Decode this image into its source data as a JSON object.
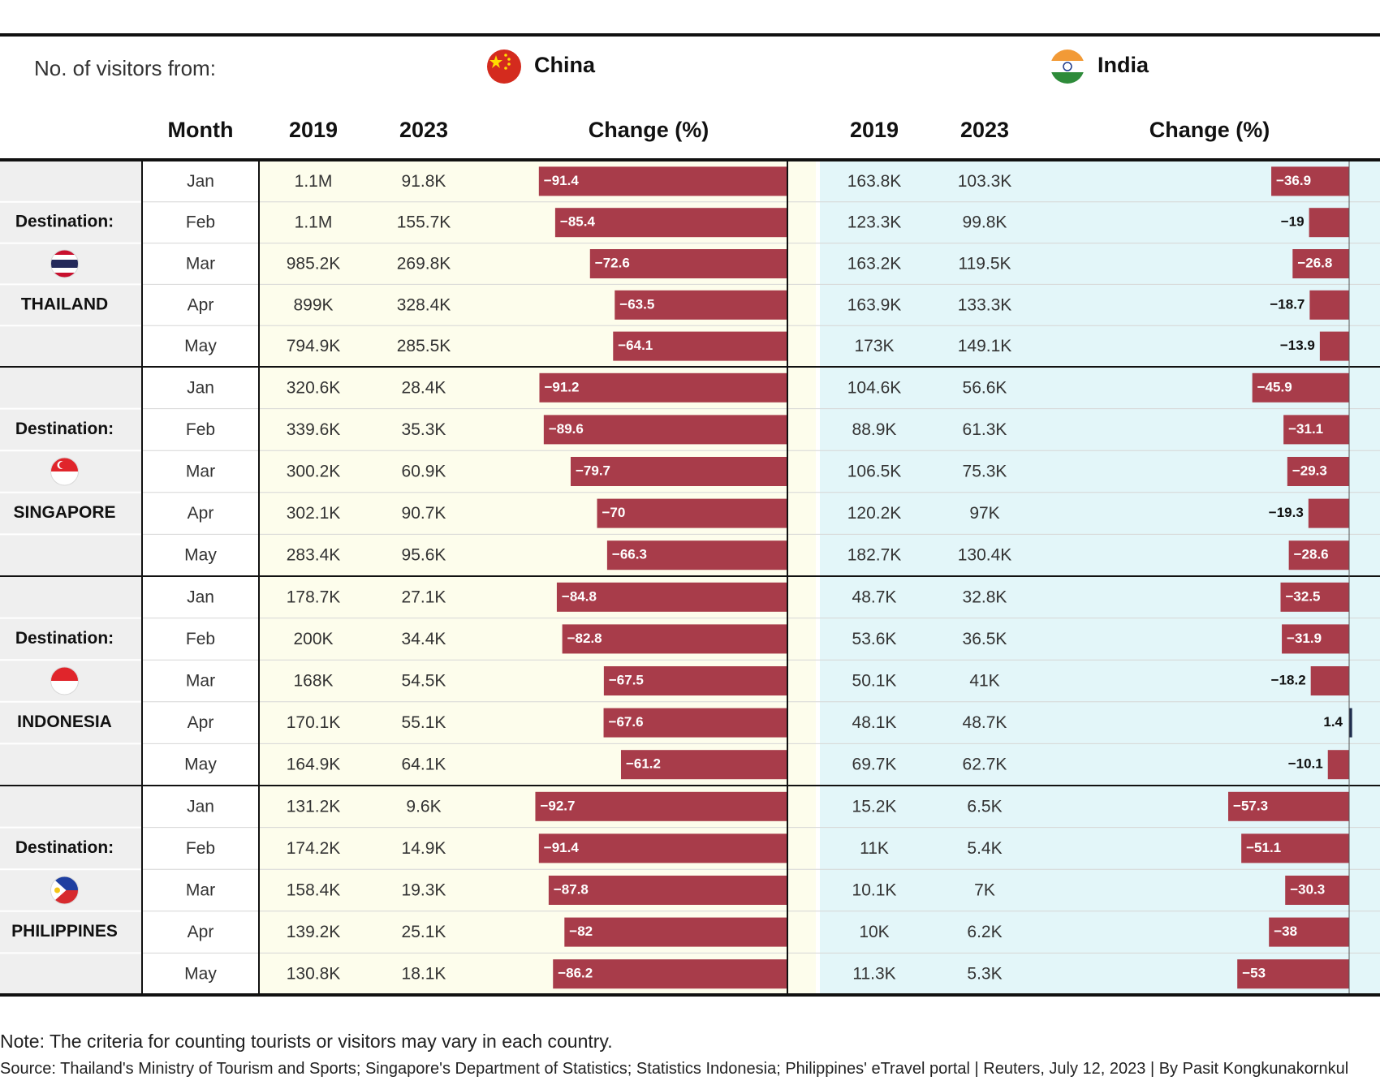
{
  "header": {
    "visitors_label": "No. of visitors from:",
    "origins": [
      {
        "name": "China",
        "flag_icon": "china-flag-icon"
      },
      {
        "name": "India",
        "flag_icon": "india-flag-icon"
      }
    ]
  },
  "columns": {
    "month": "Month",
    "year_a": "2019",
    "year_b": "2023",
    "change": "Change (%)"
  },
  "destination_label": "Destination:",
  "colors": {
    "bar_negative": "#a83c4a",
    "bar_positive": "#1f2d4d",
    "china_bg": "#fdfdec",
    "india_bg": "#e3f6f9",
    "side_bg": "#efefef"
  },
  "chart_data": {
    "type": "table",
    "destinations": [
      {
        "name": "THAILAND",
        "flag_icon": "thailand-flag-icon",
        "rows": [
          {
            "month": "Jan",
            "china": {
              "v2019": "1.1M",
              "v2023": "91.8K",
              "change": -91.4
            },
            "india": {
              "v2019": "163.8K",
              "v2023": "103.3K",
              "change": -36.9
            }
          },
          {
            "month": "Feb",
            "china": {
              "v2019": "1.1M",
              "v2023": "155.7K",
              "change": -85.4
            },
            "india": {
              "v2019": "123.3K",
              "v2023": "99.8K",
              "change": -19
            }
          },
          {
            "month": "Mar",
            "china": {
              "v2019": "985.2K",
              "v2023": "269.8K",
              "change": -72.6
            },
            "india": {
              "v2019": "163.2K",
              "v2023": "119.5K",
              "change": -26.8
            }
          },
          {
            "month": "Apr",
            "china": {
              "v2019": "899K",
              "v2023": "328.4K",
              "change": -63.5
            },
            "india": {
              "v2019": "163.9K",
              "v2023": "133.3K",
              "change": -18.7
            }
          },
          {
            "month": "May",
            "china": {
              "v2019": "794.9K",
              "v2023": "285.5K",
              "change": -64.1
            },
            "india": {
              "v2019": "173K",
              "v2023": "149.1K",
              "change": -13.9
            }
          }
        ]
      },
      {
        "name": "SINGAPORE",
        "flag_icon": "singapore-flag-icon",
        "rows": [
          {
            "month": "Jan",
            "china": {
              "v2019": "320.6K",
              "v2023": "28.4K",
              "change": -91.2
            },
            "india": {
              "v2019": "104.6K",
              "v2023": "56.6K",
              "change": -45.9
            }
          },
          {
            "month": "Feb",
            "china": {
              "v2019": "339.6K",
              "v2023": "35.3K",
              "change": -89.6
            },
            "india": {
              "v2019": "88.9K",
              "v2023": "61.3K",
              "change": -31.1
            }
          },
          {
            "month": "Mar",
            "china": {
              "v2019": "300.2K",
              "v2023": "60.9K",
              "change": -79.7
            },
            "india": {
              "v2019": "106.5K",
              "v2023": "75.3K",
              "change": -29.3
            }
          },
          {
            "month": "Apr",
            "china": {
              "v2019": "302.1K",
              "v2023": "90.7K",
              "change": -70
            },
            "india": {
              "v2019": "120.2K",
              "v2023": "97K",
              "change": -19.3
            }
          },
          {
            "month": "May",
            "china": {
              "v2019": "283.4K",
              "v2023": "95.6K",
              "change": -66.3
            },
            "india": {
              "v2019": "182.7K",
              "v2023": "130.4K",
              "change": -28.6
            }
          }
        ]
      },
      {
        "name": "INDONESIA",
        "flag_icon": "indonesia-flag-icon",
        "rows": [
          {
            "month": "Jan",
            "china": {
              "v2019": "178.7K",
              "v2023": "27.1K",
              "change": -84.8
            },
            "india": {
              "v2019": "48.7K",
              "v2023": "32.8K",
              "change": -32.5
            }
          },
          {
            "month": "Feb",
            "china": {
              "v2019": "200K",
              "v2023": "34.4K",
              "change": -82.8
            },
            "india": {
              "v2019": "53.6K",
              "v2023": "36.5K",
              "change": -31.9
            }
          },
          {
            "month": "Mar",
            "china": {
              "v2019": "168K",
              "v2023": "54.5K",
              "change": -67.5
            },
            "india": {
              "v2019": "50.1K",
              "v2023": "41K",
              "change": -18.2
            }
          },
          {
            "month": "Apr",
            "china": {
              "v2019": "170.1K",
              "v2023": "55.1K",
              "change": -67.6
            },
            "india": {
              "v2019": "48.1K",
              "v2023": "48.7K",
              "change": 1.4
            }
          },
          {
            "month": "May",
            "china": {
              "v2019": "164.9K",
              "v2023": "64.1K",
              "change": -61.2
            },
            "india": {
              "v2019": "69.7K",
              "v2023": "62.7K",
              "change": -10.1
            }
          }
        ]
      },
      {
        "name": "PHILIPPINES",
        "flag_icon": "philippines-flag-icon",
        "rows": [
          {
            "month": "Jan",
            "china": {
              "v2019": "131.2K",
              "v2023": "9.6K",
              "change": -92.7
            },
            "india": {
              "v2019": "15.2K",
              "v2023": "6.5K",
              "change": -57.3
            }
          },
          {
            "month": "Feb",
            "china": {
              "v2019": "174.2K",
              "v2023": "14.9K",
              "change": -91.4
            },
            "india": {
              "v2019": "11K",
              "v2023": "5.4K",
              "change": -51.1
            }
          },
          {
            "month": "Mar",
            "china": {
              "v2019": "158.4K",
              "v2023": "19.3K",
              "change": -87.8
            },
            "india": {
              "v2019": "10.1K",
              "v2023": "7K",
              "change": -30.3
            }
          },
          {
            "month": "Apr",
            "china": {
              "v2019": "139.2K",
              "v2023": "25.1K",
              "change": -82
            },
            "india": {
              "v2019": "10K",
              "v2023": "6.2K",
              "change": -38
            }
          },
          {
            "month": "May",
            "china": {
              "v2019": "130.8K",
              "v2023": "18.1K",
              "change": -86.2
            },
            "india": {
              "v2019": "11.3K",
              "v2023": "5.3K",
              "change": -53
            }
          }
        ]
      }
    ]
  },
  "footer": {
    "note": "Note: The criteria for counting tourists or visitors may vary in each country.",
    "source": "Source: Thailand's Ministry of Tourism and Sports; Singapore's Department of Statistics; Statistics Indonesia; Philippines' eTravel portal | Reuters, July 12, 2023 | By Pasit Kongkunakornkul"
  }
}
